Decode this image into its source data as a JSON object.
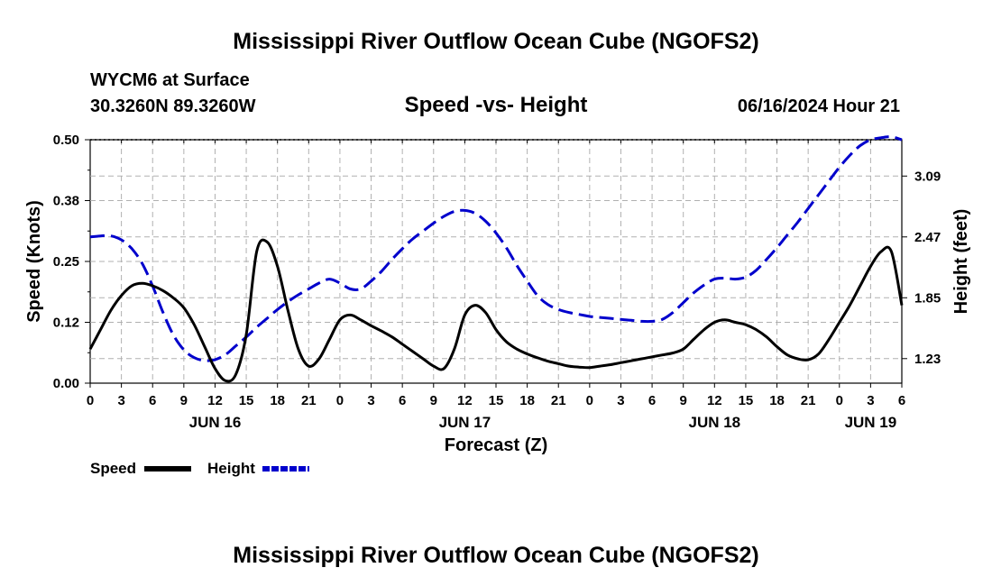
{
  "page": {
    "title_top": "Mississippi River Outflow Ocean Cube (NGOFS2)",
    "title_bottom": "Mississippi River Outflow Ocean Cube (NGOFS2)",
    "station": "WYCM6 at Surface",
    "coords": "30.3260N  89.3260W",
    "subtitle": "Speed -vs- Height",
    "datetime": "06/16/2024 Hour 21"
  },
  "chart_data": {
    "type": "line",
    "title": "Speed -vs- Height",
    "xlabel": "Forecast (Z)",
    "ylabel_left": "Speed (Knots)",
    "ylabel_right": "Height (feet)",
    "x_unit": "hours since JUN 16 00Z",
    "xlim": [
      0,
      78
    ],
    "x_ticks": [
      0,
      3,
      6,
      9,
      12,
      15,
      18,
      21,
      24,
      27,
      30,
      33,
      36,
      39,
      42,
      45,
      48,
      51,
      54,
      57,
      60,
      63,
      66,
      69,
      72,
      75,
      78
    ],
    "x_tick_labels": [
      "0",
      "3",
      "6",
      "9",
      "12",
      "15",
      "18",
      "21",
      "0",
      "3",
      "6",
      "9",
      "12",
      "15",
      "18",
      "21",
      "0",
      "3",
      "6",
      "9",
      "12",
      "15",
      "18",
      "21",
      "0",
      "3",
      "6"
    ],
    "date_labels": [
      {
        "x": 12,
        "text": "JUN 16"
      },
      {
        "x": 36,
        "text": "JUN 17"
      },
      {
        "x": 60,
        "text": "JUN 18"
      },
      {
        "x": 75,
        "text": "JUN 19"
      }
    ],
    "ylim_left": [
      0,
      0.5
    ],
    "y_ticks_left": [
      0.0,
      0.125,
      0.25,
      0.375,
      0.5
    ],
    "y_tick_labels_left": [
      "0.00",
      "0.12",
      "0.25",
      "0.38",
      "0.50"
    ],
    "ylim_right": [
      0.98,
      3.46
    ],
    "y_ticks_right": [
      1.23,
      1.85,
      2.47,
      3.09
    ],
    "y_tick_labels_right": [
      "1.23",
      "1.85",
      "2.47",
      "3.09"
    ],
    "grid": true,
    "legend": {
      "position": "bottom-left",
      "items": [
        "Speed",
        "Height"
      ]
    },
    "series": [
      {
        "name": "Speed",
        "axis": "left",
        "color": "#000000",
        "dash": "solid",
        "x": [
          0,
          1,
          2,
          3,
          4,
          5,
          6,
          7,
          8,
          9,
          10,
          11,
          12,
          13,
          14,
          15,
          16,
          17,
          18,
          19,
          20,
          21,
          22,
          23,
          24,
          25,
          26,
          27,
          28,
          29,
          30,
          31,
          32,
          33,
          34,
          35,
          36,
          37,
          38,
          39,
          40,
          41,
          42,
          43,
          44,
          45,
          46,
          47,
          48,
          49,
          50,
          51,
          52,
          53,
          54,
          55,
          56,
          57,
          58,
          59,
          60,
          61,
          62,
          63,
          64,
          65,
          66,
          67,
          68,
          69,
          70,
          71,
          72,
          73,
          74,
          75,
          76,
          77,
          78
        ],
        "values": [
          0.07,
          0.11,
          0.15,
          0.18,
          0.2,
          0.205,
          0.2,
          0.19,
          0.175,
          0.155,
          0.12,
          0.075,
          0.03,
          0.005,
          0.018,
          0.1,
          0.27,
          0.29,
          0.24,
          0.15,
          0.07,
          0.035,
          0.05,
          0.09,
          0.13,
          0.14,
          0.13,
          0.118,
          0.107,
          0.095,
          0.08,
          0.065,
          0.05,
          0.035,
          0.03,
          0.07,
          0.14,
          0.16,
          0.145,
          0.11,
          0.085,
          0.07,
          0.06,
          0.052,
          0.045,
          0.04,
          0.035,
          0.033,
          0.032,
          0.035,
          0.038,
          0.042,
          0.046,
          0.05,
          0.054,
          0.058,
          0.062,
          0.07,
          0.09,
          0.11,
          0.125,
          0.13,
          0.125,
          0.12,
          0.11,
          0.095,
          0.075,
          0.058,
          0.05,
          0.048,
          0.06,
          0.09,
          0.125,
          0.16,
          0.2,
          0.24,
          0.27,
          0.27,
          0.16
        ]
      },
      {
        "name": "Height",
        "axis": "right",
        "color": "#0000cc",
        "dash": "dashed",
        "x": [
          0,
          1,
          2,
          3,
          4,
          5,
          6,
          7,
          8,
          9,
          10,
          11,
          12,
          13,
          14,
          15,
          16,
          17,
          18,
          19,
          20,
          21,
          22,
          23,
          24,
          25,
          26,
          27,
          28,
          29,
          30,
          31,
          32,
          33,
          34,
          35,
          36,
          37,
          38,
          39,
          40,
          41,
          42,
          43,
          44,
          45,
          46,
          47,
          48,
          49,
          50,
          51,
          52,
          53,
          54,
          55,
          56,
          57,
          58,
          59,
          60,
          61,
          62,
          63,
          64,
          65,
          66,
          67,
          68,
          69,
          70,
          71,
          72,
          73,
          74,
          75,
          76,
          77,
          78
        ],
        "values": [
          2.47,
          2.48,
          2.48,
          2.44,
          2.35,
          2.2,
          1.97,
          1.7,
          1.47,
          1.32,
          1.24,
          1.21,
          1.22,
          1.27,
          1.36,
          1.45,
          1.55,
          1.64,
          1.73,
          1.81,
          1.88,
          1.94,
          2.0,
          2.04,
          2.0,
          1.94,
          1.94,
          2.02,
          2.12,
          2.24,
          2.35,
          2.45,
          2.53,
          2.61,
          2.68,
          2.73,
          2.74,
          2.71,
          2.63,
          2.51,
          2.36,
          2.18,
          2.02,
          1.87,
          1.78,
          1.73,
          1.7,
          1.68,
          1.66,
          1.65,
          1.64,
          1.63,
          1.62,
          1.61,
          1.61,
          1.63,
          1.7,
          1.8,
          1.9,
          1.98,
          2.04,
          2.05,
          2.04,
          2.06,
          2.13,
          2.24,
          2.36,
          2.49,
          2.62,
          2.76,
          2.9,
          3.04,
          3.18,
          3.3,
          3.4,
          3.46,
          3.48,
          3.49,
          3.46
        ]
      }
    ]
  }
}
